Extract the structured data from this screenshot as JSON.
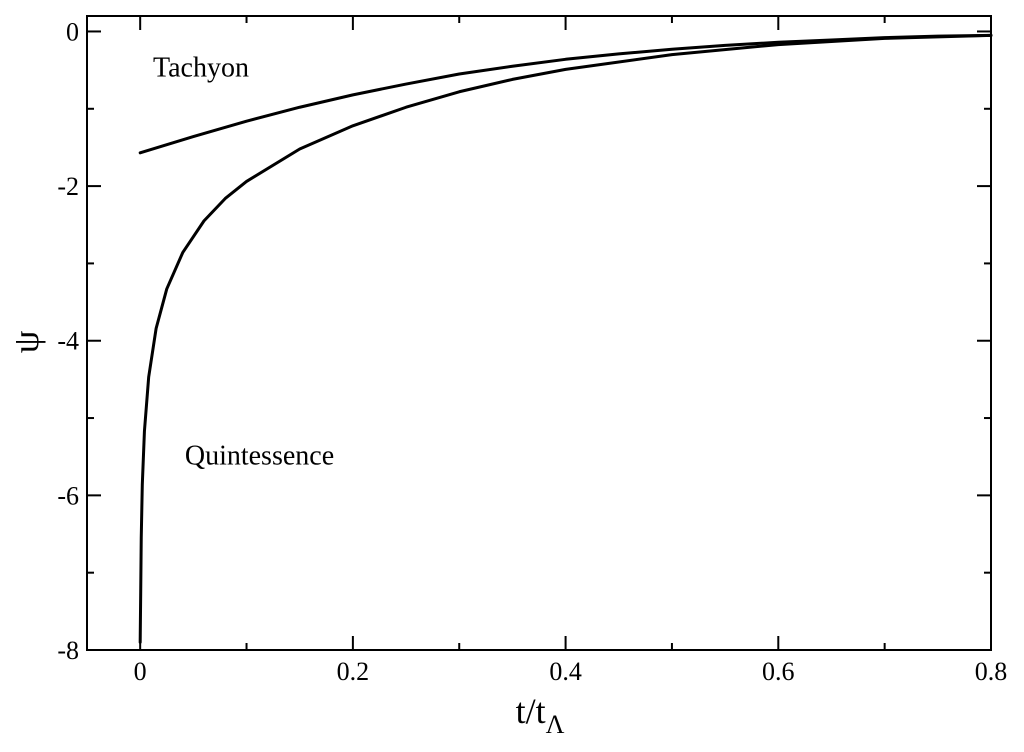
{
  "chart_data": {
    "type": "line",
    "title": "",
    "xlabel": "t/t",
    "xlabel_subscript": "Λ",
    "ylabel": "ψ",
    "xlim": [
      -0.05,
      0.8
    ],
    "ylim": [
      -8,
      0.2
    ],
    "x_ticks": [
      0,
      0.2,
      0.4,
      0.6,
      0.8
    ],
    "x_tick_labels": [
      "0",
      "0.2",
      "0.4",
      "0.6",
      "0.8"
    ],
    "y_ticks": [
      -8,
      -6,
      -4,
      -2,
      0
    ],
    "y_tick_labels": [
      "-8",
      "-6",
      "-4",
      "-2",
      "0"
    ],
    "grid": false,
    "legend": "none",
    "line_color": "#000000",
    "annotations": [
      {
        "text": "Tachyon",
        "x": 0.012,
        "y": -0.58
      },
      {
        "text": "Quintessence",
        "x": 0.042,
        "y": -5.6
      }
    ],
    "series": [
      {
        "x": [
          0.0,
          0.05,
          0.1,
          0.15,
          0.2,
          0.25,
          0.3,
          0.35,
          0.4,
          0.45,
          0.5,
          0.55,
          0.6,
          0.65,
          0.7,
          0.75,
          0.8
        ],
        "values": [
          -1.57,
          -1.36,
          -1.16,
          -0.98,
          -0.82,
          -0.68,
          -0.55,
          -0.45,
          -0.36,
          -0.29,
          -0.23,
          -0.18,
          -0.14,
          -0.11,
          -0.08,
          -0.06,
          -0.05
        ]
      },
      {
        "x": [
          0.0,
          0.0005,
          0.001,
          0.002,
          0.004,
          0.008,
          0.015,
          0.025,
          0.04,
          0.06,
          0.08,
          0.1,
          0.15,
          0.2,
          0.25,
          0.3,
          0.35,
          0.4,
          0.5,
          0.6,
          0.7,
          0.8
        ],
        "values": [
          -7.9,
          -7.25,
          -6.55,
          -5.86,
          -5.17,
          -4.47,
          -3.84,
          -3.33,
          -2.86,
          -2.45,
          -2.16,
          -1.94,
          -1.52,
          -1.22,
          -0.98,
          -0.78,
          -0.62,
          -0.49,
          -0.3,
          -0.17,
          -0.09,
          -0.05
        ]
      }
    ]
  }
}
